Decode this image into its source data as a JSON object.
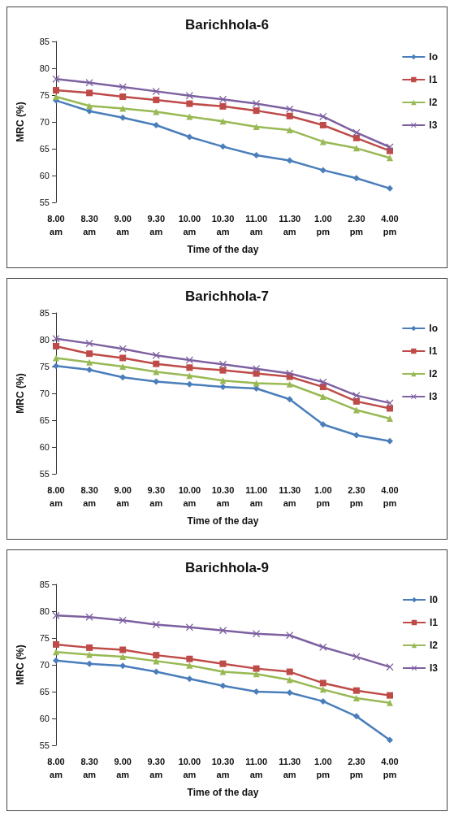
{
  "chart_data": [
    {
      "type": "line",
      "title": "Barichhola-6",
      "xlabel": "Time of the day",
      "ylabel": "MRC (%)",
      "categories": [
        "8.00 am",
        "8.30 am",
        "9.00 am",
        "9.30 am",
        "10.00 am",
        "10.30 am",
        "11.00 am",
        "11.30 am",
        "1.00 pm",
        "2.30 pm",
        "4.00 pm"
      ],
      "ylim": [
        55,
        85
      ],
      "yticks": [
        55,
        60,
        65,
        70,
        75,
        80,
        85
      ],
      "grid": false,
      "legend": "right",
      "series": [
        {
          "name": "Io",
          "color": "#4a7ebb",
          "marker": "diamond",
          "values": [
            74.0,
            72.0,
            70.8,
            69.4,
            67.2,
            65.4,
            63.8,
            62.8,
            61.0,
            59.5,
            57.6
          ]
        },
        {
          "name": "I1",
          "color": "#be4b48",
          "marker": "square",
          "values": [
            75.9,
            75.4,
            74.7,
            74.1,
            73.4,
            72.9,
            72.1,
            71.1,
            69.4,
            67.0,
            64.6
          ]
        },
        {
          "name": "I2",
          "color": "#98b954",
          "marker": "triangle",
          "values": [
            74.7,
            73.0,
            72.5,
            71.9,
            71.0,
            70.1,
            69.1,
            68.5,
            66.3,
            65.1,
            63.3
          ]
        },
        {
          "name": "I3",
          "color": "#7d60a0",
          "marker": "cross",
          "values": [
            78.0,
            77.3,
            76.5,
            75.7,
            74.9,
            74.2,
            73.4,
            72.4,
            71.0,
            68.0,
            65.3
          ]
        }
      ]
    },
    {
      "type": "line",
      "title": "Barichhola-7",
      "xlabel": "Time of the day",
      "ylabel": "MRC (%)",
      "categories": [
        "8.00 am",
        "8.30 am",
        "9.00 am",
        "9.30 am",
        "10.00 am",
        "10.30 am",
        "11.00 am",
        "11.30 am",
        "1.00 pm",
        "2.30 pm",
        "4.00 pm"
      ],
      "ylim": [
        55,
        85
      ],
      "yticks": [
        55,
        60,
        65,
        70,
        75,
        80,
        85
      ],
      "grid": false,
      "legend": "right",
      "series": [
        {
          "name": "Io",
          "color": "#4a7ebb",
          "marker": "diamond",
          "values": [
            75.1,
            74.4,
            73.0,
            72.2,
            71.7,
            71.2,
            70.9,
            68.9,
            64.2,
            62.2,
            61.1
          ]
        },
        {
          "name": "I1",
          "color": "#be4b48",
          "marker": "square",
          "values": [
            78.8,
            77.4,
            76.6,
            75.5,
            74.8,
            74.3,
            73.7,
            73.1,
            71.2,
            68.5,
            67.2
          ]
        },
        {
          "name": "I2",
          "color": "#98b954",
          "marker": "triangle",
          "values": [
            76.6,
            75.8,
            75.0,
            74.0,
            73.3,
            72.4,
            71.9,
            71.7,
            69.4,
            66.9,
            65.3
          ]
        },
        {
          "name": "I3",
          "color": "#7d60a0",
          "marker": "cross",
          "values": [
            80.2,
            79.3,
            78.3,
            77.1,
            76.2,
            75.4,
            74.6,
            73.7,
            72.1,
            69.6,
            68.2
          ]
        }
      ]
    },
    {
      "type": "line",
      "title": "Barichhola-9",
      "xlabel": "Time of the day",
      "ylabel": "MRC (%)",
      "categories": [
        "8.00 am",
        "8.30 am",
        "9.00 am",
        "9.30 am",
        "10.00 am",
        "10.30 am",
        "11.00 am",
        "11.30 am",
        "1.00 pm",
        "2.30 pm",
        "4.00 pm"
      ],
      "ylim": [
        55,
        85
      ],
      "yticks": [
        55,
        60,
        65,
        70,
        75,
        80,
        85
      ],
      "grid": false,
      "legend": "right",
      "series": [
        {
          "name": "I0",
          "color": "#4a7ebb",
          "marker": "diamond",
          "values": [
            70.8,
            70.2,
            69.8,
            68.7,
            67.4,
            66.1,
            65.0,
            64.8,
            63.2,
            60.4,
            56.0
          ]
        },
        {
          "name": "I1",
          "color": "#be4b48",
          "marker": "square",
          "values": [
            73.8,
            73.2,
            72.8,
            71.8,
            71.1,
            70.2,
            69.3,
            68.7,
            66.6,
            65.2,
            64.3
          ]
        },
        {
          "name": "I2",
          "color": "#98b954",
          "marker": "triangle",
          "values": [
            72.4,
            71.9,
            71.5,
            70.7,
            69.9,
            68.7,
            68.3,
            67.2,
            65.4,
            63.8,
            62.9
          ]
        },
        {
          "name": "I3",
          "color": "#7d60a0",
          "marker": "cross",
          "values": [
            79.2,
            78.9,
            78.3,
            77.5,
            77.0,
            76.4,
            75.8,
            75.5,
            73.3,
            71.5,
            69.6
          ]
        }
      ]
    }
  ]
}
